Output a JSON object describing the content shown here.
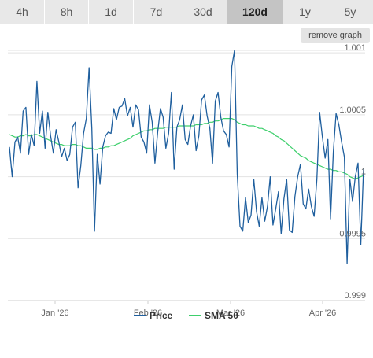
{
  "tabs": [
    {
      "label": "4h"
    },
    {
      "label": "8h"
    },
    {
      "label": "1d"
    },
    {
      "label": "7d"
    },
    {
      "label": "30d"
    },
    {
      "label": "120d",
      "active": true
    },
    {
      "label": "1y"
    },
    {
      "label": "5y"
    }
  ],
  "remove_graph_label": "remove graph",
  "chart_data": {
    "type": "line",
    "title": "",
    "xlabel": "",
    "ylabel": "",
    "x_ticks": [
      "Jan '26",
      "Feb '26",
      "Mar '26",
      "Apr '26"
    ],
    "y_ticks": [
      "0.999",
      "0.9995",
      "1",
      "1.0005",
      "1.001"
    ],
    "ylim": [
      0.999,
      1.00102
    ],
    "grid": true,
    "legend_position": "bottom-center",
    "series": [
      {
        "name": "Price",
        "color": "#1f5f9e",
        "values": [
          1.00024,
          1.0,
          1.00028,
          1.00032,
          1.00019,
          1.00053,
          1.00056,
          1.00018,
          1.00034,
          1.00025,
          1.00077,
          1.00035,
          1.00053,
          1.00023,
          1.00052,
          1.00033,
          1.00019,
          1.00038,
          1.00028,
          1.00016,
          1.00023,
          1.00013,
          1.00018,
          1.0004,
          1.00044,
          0.99991,
          1.00009,
          1.00035,
          1.00047,
          1.00088,
          1.00039,
          0.99956,
          1.00018,
          0.99994,
          1.00024,
          1.00033,
          1.00036,
          1.00035,
          1.00055,
          1.00046,
          1.00056,
          1.00057,
          1.00063,
          1.00049,
          1.00056,
          1.0004,
          1.00058,
          1.00054,
          1.00032,
          1.00028,
          1.00019,
          1.00058,
          1.00044,
          1.00011,
          1.00036,
          1.00055,
          1.00048,
          1.00023,
          1.00035,
          1.00068,
          1.00006,
          1.0004,
          1.00046,
          1.00058,
          1.0003,
          1.00026,
          1.00041,
          1.0005,
          1.00021,
          1.00033,
          1.00062,
          1.00066,
          1.00049,
          1.00039,
          1.00011,
          1.00061,
          1.00068,
          1.00048,
          1.00037,
          1.00034,
          1.00024,
          1.00089,
          1.00102,
          1.00002,
          0.9996,
          0.99956,
          0.99983,
          0.99963,
          0.99969,
          0.99998,
          0.99972,
          0.9996,
          0.99983,
          0.99964,
          0.99976,
          1.0,
          0.99961,
          0.99974,
          0.99988,
          0.99954,
          0.99982,
          0.99998,
          0.99957,
          0.99955,
          0.99984,
          1.0,
          1.0001,
          0.99978,
          0.99974,
          0.9999,
          0.99976,
          0.99968,
          0.99998,
          1.00052,
          1.00032,
          1.00015,
          1.0003,
          0.99966,
          1.0002,
          1.00051,
          1.00042,
          1.00028,
          1.00016,
          0.9993,
          0.99998,
          0.9998,
          1.0,
          1.00011,
          0.99945,
          1.00007
        ]
      },
      {
        "name": "SMA 50",
        "color": "#3ecf6c",
        "values": [
          1.00034,
          1.00033,
          1.00032,
          1.00032,
          1.00033,
          1.00033,
          1.00034,
          1.00033,
          1.00033,
          1.00034,
          1.00034,
          1.00033,
          1.00032,
          1.00031,
          1.0003,
          1.00029,
          1.00028,
          1.00027,
          1.00026,
          1.00026,
          1.00025,
          1.00025,
          1.00025,
          1.00026,
          1.00026,
          1.00025,
          1.00025,
          1.00024,
          1.00023,
          1.00023,
          1.00023,
          1.00022,
          1.00022,
          1.00023,
          1.00023,
          1.00024,
          1.00024,
          1.00025,
          1.00025,
          1.00026,
          1.00027,
          1.00028,
          1.00029,
          1.0003,
          1.00031,
          1.00033,
          1.00034,
          1.00035,
          1.00036,
          1.00037,
          1.00037,
          1.00038,
          1.00038,
          1.00039,
          1.00039,
          1.00039,
          1.00039,
          1.0004,
          1.0004,
          1.0004,
          1.0004,
          1.0004,
          1.00041,
          1.00041,
          1.00041,
          1.00041,
          1.00041,
          1.00041,
          1.00042,
          1.00042,
          1.00042,
          1.00043,
          1.00043,
          1.00044,
          1.00044,
          1.00045,
          1.00045,
          1.00046,
          1.00047,
          1.00047,
          1.00047,
          1.00047,
          1.00046,
          1.00044,
          1.00043,
          1.00042,
          1.00042,
          1.00041,
          1.00041,
          1.00041,
          1.0004,
          1.00039,
          1.00039,
          1.00038,
          1.00037,
          1.00036,
          1.00035,
          1.00033,
          1.00032,
          1.0003,
          1.00029,
          1.00027,
          1.00025,
          1.00023,
          1.00021,
          1.00019,
          1.00017,
          1.00016,
          1.00015,
          1.00013,
          1.00012,
          1.00011,
          1.0001,
          1.00009,
          1.00008,
          1.00007,
          1.00006,
          1.00006,
          1.00005,
          1.00005,
          1.00004,
          1.00004,
          1.00003,
          1.00002,
          1.0,
          0.99999,
          0.99998,
          0.99999,
          1.0,
          1.00001
        ]
      }
    ]
  }
}
